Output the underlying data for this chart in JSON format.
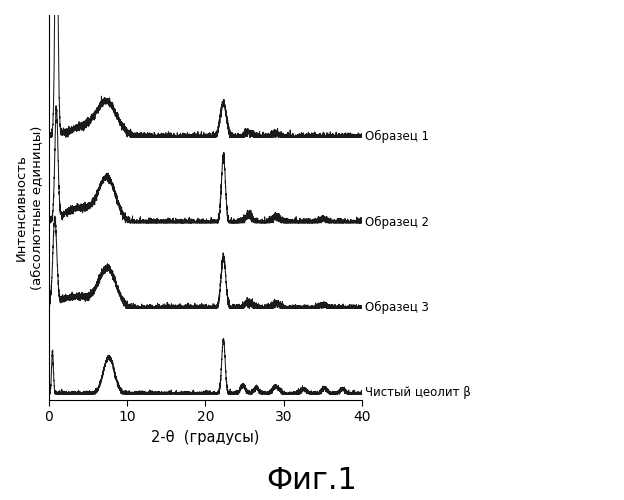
{
  "title": "Фиг.1",
  "xlabel": "2-θ  (градусы)",
  "ylabel": "Интенсивность\n(абсолютные единицы)",
  "labels": [
    "Образец 1",
    "Образец 2",
    "Образец 3",
    "Чистый цеолит β"
  ],
  "background_color": "#ffffff",
  "line_color": "#1a1a1a",
  "offsets": [
    2.1,
    1.4,
    0.7,
    0.0
  ],
  "seed": 42
}
